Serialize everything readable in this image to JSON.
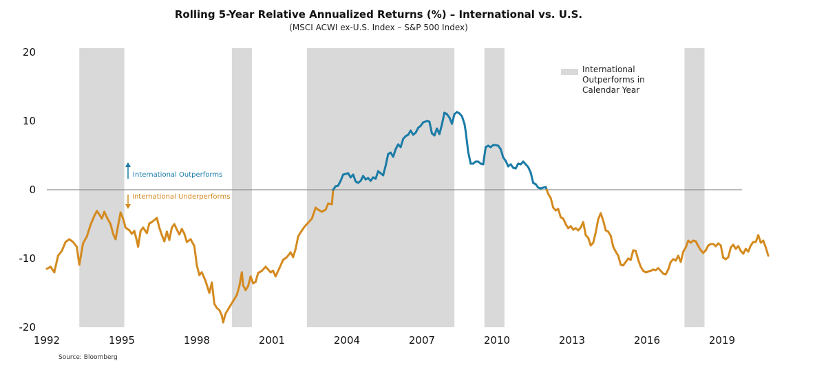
{
  "chart_data": {
    "type": "line",
    "title": "Rolling 5-Year Relative Annualized Returns (%) – International vs. U.S.",
    "subtitle": "(MSCI ACWI ex-U.S. Index – S&P 500 Index)",
    "source": "Source: Bloomberg",
    "xlim": [
      1992.0,
      2019.8
    ],
    "ylim": [
      -20,
      20
    ],
    "x_ticks": [
      1992,
      1995,
      1998,
      2001,
      2004,
      2007,
      2010,
      2013,
      2016,
      2019
    ],
    "y_ticks": [
      20,
      10,
      0,
      -10,
      -20
    ],
    "legend": {
      "label": "International Outperforms in Calendar Year",
      "color": "#d9d9d9",
      "position": "top-right"
    },
    "annotations": {
      "up": "International Outperforms",
      "down": "International Underperforms"
    },
    "colors": {
      "positive": "#1a7ba6",
      "negative": "#d48a1f",
      "shade": "#d9d9d9",
      "zero_line": "#777777"
    },
    "shaded_periods": [
      [
        1993.3,
        1995.1
      ],
      [
        1999.4,
        2000.2
      ],
      [
        2002.4,
        2008.3
      ],
      [
        2009.5,
        2010.3
      ],
      [
        2017.5,
        2018.3
      ]
    ],
    "series": [
      {
        "points": [
          [
            1992.0,
            -11.5
          ],
          [
            1992.15,
            -11.2
          ],
          [
            1992.3,
            -12.0
          ],
          [
            1992.45,
            -9.6
          ],
          [
            1992.6,
            -8.9
          ],
          [
            1992.75,
            -7.6
          ],
          [
            1992.9,
            -7.2
          ],
          [
            1993.05,
            -7.6
          ],
          [
            1993.2,
            -8.3
          ],
          [
            1993.3,
            -10.9
          ],
          [
            1993.45,
            -7.8
          ],
          [
            1993.6,
            -6.8
          ],
          [
            1993.75,
            -5.1
          ],
          [
            1993.9,
            -3.8
          ],
          [
            1994.0,
            -3.1
          ],
          [
            1994.1,
            -3.6
          ],
          [
            1994.2,
            -4.2
          ],
          [
            1994.3,
            -3.2
          ],
          [
            1994.4,
            -4.0
          ],
          [
            1994.55,
            -5.0
          ],
          [
            1994.65,
            -6.4
          ],
          [
            1994.75,
            -7.2
          ],
          [
            1994.85,
            -5.2
          ],
          [
            1994.95,
            -3.3
          ],
          [
            1995.05,
            -4.2
          ],
          [
            1995.15,
            -5.5
          ],
          [
            1995.3,
            -5.9
          ],
          [
            1995.4,
            -6.4
          ],
          [
            1995.5,
            -6.0
          ],
          [
            1995.6,
            -7.4
          ],
          [
            1995.65,
            -8.3
          ],
          [
            1995.75,
            -6.0
          ],
          [
            1995.85,
            -5.5
          ],
          [
            1996.0,
            -6.3
          ],
          [
            1996.1,
            -4.9
          ],
          [
            1996.2,
            -4.7
          ],
          [
            1996.3,
            -4.4
          ],
          [
            1996.4,
            -4.1
          ],
          [
            1996.5,
            -5.5
          ],
          [
            1996.6,
            -6.6
          ],
          [
            1996.7,
            -7.5
          ],
          [
            1996.8,
            -6.1
          ],
          [
            1996.9,
            -7.3
          ],
          [
            1997.0,
            -5.5
          ],
          [
            1997.1,
            -5.0
          ],
          [
            1997.2,
            -5.8
          ],
          [
            1997.3,
            -6.5
          ],
          [
            1997.4,
            -5.7
          ],
          [
            1997.5,
            -6.4
          ],
          [
            1997.6,
            -7.6
          ],
          [
            1997.75,
            -7.2
          ],
          [
            1997.9,
            -8.2
          ],
          [
            1998.0,
            -11.0
          ],
          [
            1998.1,
            -12.4
          ],
          [
            1998.2,
            -12.0
          ],
          [
            1998.35,
            -13.3
          ],
          [
            1998.5,
            -15.0
          ],
          [
            1998.6,
            -13.5
          ],
          [
            1998.7,
            -16.6
          ],
          [
            1998.8,
            -17.2
          ],
          [
            1998.9,
            -17.5
          ],
          [
            1999.0,
            -18.3
          ],
          [
            1999.05,
            -19.3
          ],
          [
            1999.15,
            -18.0
          ],
          [
            1999.3,
            -17.1
          ],
          [
            1999.45,
            -16.2
          ],
          [
            1999.6,
            -15.3
          ],
          [
            1999.7,
            -14.0
          ],
          [
            1999.8,
            -12.0
          ],
          [
            1999.85,
            -13.9
          ],
          [
            1999.95,
            -14.6
          ],
          [
            2000.05,
            -14.0
          ],
          [
            2000.15,
            -12.6
          ],
          [
            2000.25,
            -13.6
          ],
          [
            2000.35,
            -13.4
          ],
          [
            2000.45,
            -12.1
          ],
          [
            2000.6,
            -11.8
          ],
          [
            2000.75,
            -11.2
          ],
          [
            2000.85,
            -11.6
          ],
          [
            2000.95,
            -12.0
          ],
          [
            2001.05,
            -11.8
          ],
          [
            2001.15,
            -12.6
          ],
          [
            2001.3,
            -11.4
          ],
          [
            2001.45,
            -10.2
          ],
          [
            2001.6,
            -9.8
          ],
          [
            2001.75,
            -9.1
          ],
          [
            2001.85,
            -9.8
          ],
          [
            2001.95,
            -8.6
          ],
          [
            2002.05,
            -6.8
          ],
          [
            2002.15,
            -6.2
          ],
          [
            2002.3,
            -5.4
          ],
          [
            2002.45,
            -4.8
          ],
          [
            2002.6,
            -4.2
          ],
          [
            2002.75,
            -2.6
          ],
          [
            2002.85,
            -2.9
          ],
          [
            2003.0,
            -3.2
          ],
          [
            2003.15,
            -2.9
          ],
          [
            2003.25,
            -2.0
          ],
          [
            2003.4,
            -2.1
          ],
          [
            2003.45,
            0.0
          ],
          [
            2003.55,
            0.5
          ],
          [
            2003.65,
            0.6
          ],
          [
            2003.75,
            1.3
          ],
          [
            2003.85,
            2.2
          ],
          [
            2003.95,
            2.3
          ],
          [
            2004.05,
            2.4
          ],
          [
            2004.15,
            1.8
          ],
          [
            2004.25,
            2.2
          ],
          [
            2004.35,
            1.2
          ],
          [
            2004.45,
            1.0
          ],
          [
            2004.55,
            1.3
          ],
          [
            2004.65,
            2.0
          ],
          [
            2004.75,
            1.5
          ],
          [
            2004.85,
            1.7
          ],
          [
            2004.95,
            1.3
          ],
          [
            2005.05,
            1.8
          ],
          [
            2005.15,
            1.6
          ],
          [
            2005.25,
            2.7
          ],
          [
            2005.35,
            2.4
          ],
          [
            2005.45,
            2.1
          ],
          [
            2005.55,
            3.5
          ],
          [
            2005.65,
            5.2
          ],
          [
            2005.75,
            5.4
          ],
          [
            2005.85,
            4.8
          ],
          [
            2005.95,
            5.9
          ],
          [
            2006.05,
            6.6
          ],
          [
            2006.15,
            6.2
          ],
          [
            2006.25,
            7.4
          ],
          [
            2006.35,
            7.8
          ],
          [
            2006.45,
            8.0
          ],
          [
            2006.55,
            8.6
          ],
          [
            2006.65,
            8.0
          ],
          [
            2006.75,
            8.3
          ],
          [
            2006.85,
            9.0
          ],
          [
            2006.95,
            9.3
          ],
          [
            2007.05,
            9.8
          ],
          [
            2007.2,
            10.0
          ],
          [
            2007.3,
            9.9
          ],
          [
            2007.4,
            8.2
          ],
          [
            2007.5,
            7.9
          ],
          [
            2007.6,
            8.9
          ],
          [
            2007.7,
            8.1
          ],
          [
            2007.8,
            9.5
          ],
          [
            2007.9,
            11.2
          ],
          [
            2008.0,
            11.0
          ],
          [
            2008.1,
            10.5
          ],
          [
            2008.2,
            9.6
          ],
          [
            2008.3,
            11.0
          ],
          [
            2008.4,
            11.3
          ],
          [
            2008.5,
            11.1
          ],
          [
            2008.6,
            10.7
          ],
          [
            2008.7,
            9.6
          ],
          [
            2008.75,
            8.5
          ],
          [
            2008.85,
            5.5
          ],
          [
            2008.95,
            3.8
          ],
          [
            2009.05,
            3.8
          ],
          [
            2009.15,
            4.1
          ],
          [
            2009.25,
            4.1
          ],
          [
            2009.35,
            3.8
          ],
          [
            2009.45,
            3.7
          ],
          [
            2009.55,
            6.2
          ],
          [
            2009.65,
            6.4
          ],
          [
            2009.75,
            6.2
          ],
          [
            2009.85,
            6.5
          ],
          [
            2009.95,
            6.5
          ],
          [
            2010.05,
            6.4
          ],
          [
            2010.15,
            5.9
          ],
          [
            2010.25,
            4.7
          ],
          [
            2010.35,
            4.2
          ],
          [
            2010.45,
            3.4
          ],
          [
            2010.55,
            3.7
          ],
          [
            2010.65,
            3.2
          ],
          [
            2010.75,
            3.1
          ],
          [
            2010.85,
            3.8
          ],
          [
            2010.95,
            3.7
          ],
          [
            2011.05,
            4.1
          ],
          [
            2011.15,
            3.7
          ],
          [
            2011.25,
            3.3
          ],
          [
            2011.35,
            2.5
          ],
          [
            2011.45,
            1.0
          ],
          [
            2011.55,
            0.8
          ],
          [
            2011.65,
            0.3
          ],
          [
            2011.75,
            0.2
          ],
          [
            2011.85,
            0.3
          ],
          [
            2011.95,
            0.4
          ],
          [
            2012.05,
            -0.6
          ],
          [
            2012.15,
            -1.2
          ],
          [
            2012.25,
            -2.6
          ],
          [
            2012.35,
            -3.0
          ],
          [
            2012.45,
            -2.8
          ],
          [
            2012.55,
            -4.0
          ],
          [
            2012.65,
            -4.2
          ],
          [
            2012.75,
            -5.0
          ],
          [
            2012.85,
            -5.6
          ],
          [
            2012.95,
            -5.3
          ],
          [
            2013.05,
            -5.8
          ],
          [
            2013.15,
            -5.6
          ],
          [
            2013.25,
            -5.9
          ],
          [
            2013.35,
            -5.5
          ],
          [
            2013.45,
            -4.7
          ],
          [
            2013.55,
            -6.6
          ],
          [
            2013.65,
            -7.0
          ],
          [
            2013.75,
            -8.1
          ],
          [
            2013.85,
            -7.7
          ],
          [
            2013.95,
            -6.2
          ],
          [
            2014.05,
            -4.3
          ],
          [
            2014.15,
            -3.4
          ],
          [
            2014.25,
            -4.5
          ],
          [
            2014.35,
            -5.9
          ],
          [
            2014.45,
            -6.1
          ],
          [
            2014.55,
            -6.7
          ],
          [
            2014.65,
            -8.3
          ],
          [
            2014.75,
            -9.0
          ],
          [
            2014.85,
            -9.6
          ],
          [
            2014.95,
            -10.9
          ],
          [
            2015.05,
            -11.0
          ],
          [
            2015.15,
            -10.5
          ],
          [
            2015.25,
            -10.0
          ],
          [
            2015.35,
            -10.2
          ],
          [
            2015.45,
            -8.8
          ],
          [
            2015.55,
            -8.9
          ],
          [
            2015.65,
            -10.2
          ],
          [
            2015.75,
            -11.2
          ],
          [
            2015.85,
            -11.8
          ],
          [
            2015.95,
            -12.0
          ],
          [
            2016.05,
            -11.9
          ],
          [
            2016.15,
            -11.8
          ],
          [
            2016.25,
            -11.6
          ],
          [
            2016.35,
            -11.7
          ],
          [
            2016.45,
            -11.4
          ],
          [
            2016.55,
            -11.8
          ],
          [
            2016.65,
            -12.2
          ],
          [
            2016.75,
            -12.3
          ],
          [
            2016.85,
            -11.6
          ],
          [
            2016.95,
            -10.5
          ],
          [
            2017.05,
            -10.1
          ],
          [
            2017.15,
            -10.3
          ],
          [
            2017.25,
            -9.6
          ],
          [
            2017.35,
            -10.5
          ],
          [
            2017.45,
            -9.0
          ],
          [
            2017.55,
            -8.4
          ],
          [
            2017.65,
            -7.4
          ],
          [
            2017.75,
            -7.7
          ],
          [
            2017.85,
            -7.4
          ],
          [
            2017.95,
            -7.5
          ],
          [
            2018.05,
            -8.2
          ],
          [
            2018.15,
            -8.8
          ],
          [
            2018.25,
            -9.2
          ],
          [
            2018.35,
            -8.8
          ],
          [
            2018.45,
            -8.1
          ],
          [
            2018.55,
            -7.9
          ],
          [
            2018.65,
            -7.9
          ],
          [
            2018.75,
            -8.2
          ],
          [
            2018.85,
            -7.8
          ],
          [
            2018.95,
            -8.1
          ],
          [
            2019.05,
            -9.9
          ],
          [
            2019.15,
            -10.1
          ],
          [
            2019.25,
            -9.8
          ],
          [
            2019.35,
            -8.4
          ],
          [
            2019.45,
            -8.0
          ],
          [
            2019.55,
            -8.6
          ],
          [
            2019.65,
            -8.2
          ],
          [
            2019.75,
            -8.9
          ],
          [
            2019.85,
            -9.3
          ],
          [
            2019.95,
            -8.6
          ],
          [
            2020.05,
            -9.0
          ],
          [
            2020.15,
            -8.1
          ],
          [
            2020.25,
            -7.6
          ],
          [
            2020.35,
            -7.6
          ],
          [
            2020.45,
            -6.6
          ],
          [
            2020.55,
            -7.7
          ],
          [
            2020.65,
            -7.4
          ],
          [
            2020.75,
            -8.4
          ],
          [
            2020.85,
            -9.6
          ]
        ]
      }
    ]
  }
}
